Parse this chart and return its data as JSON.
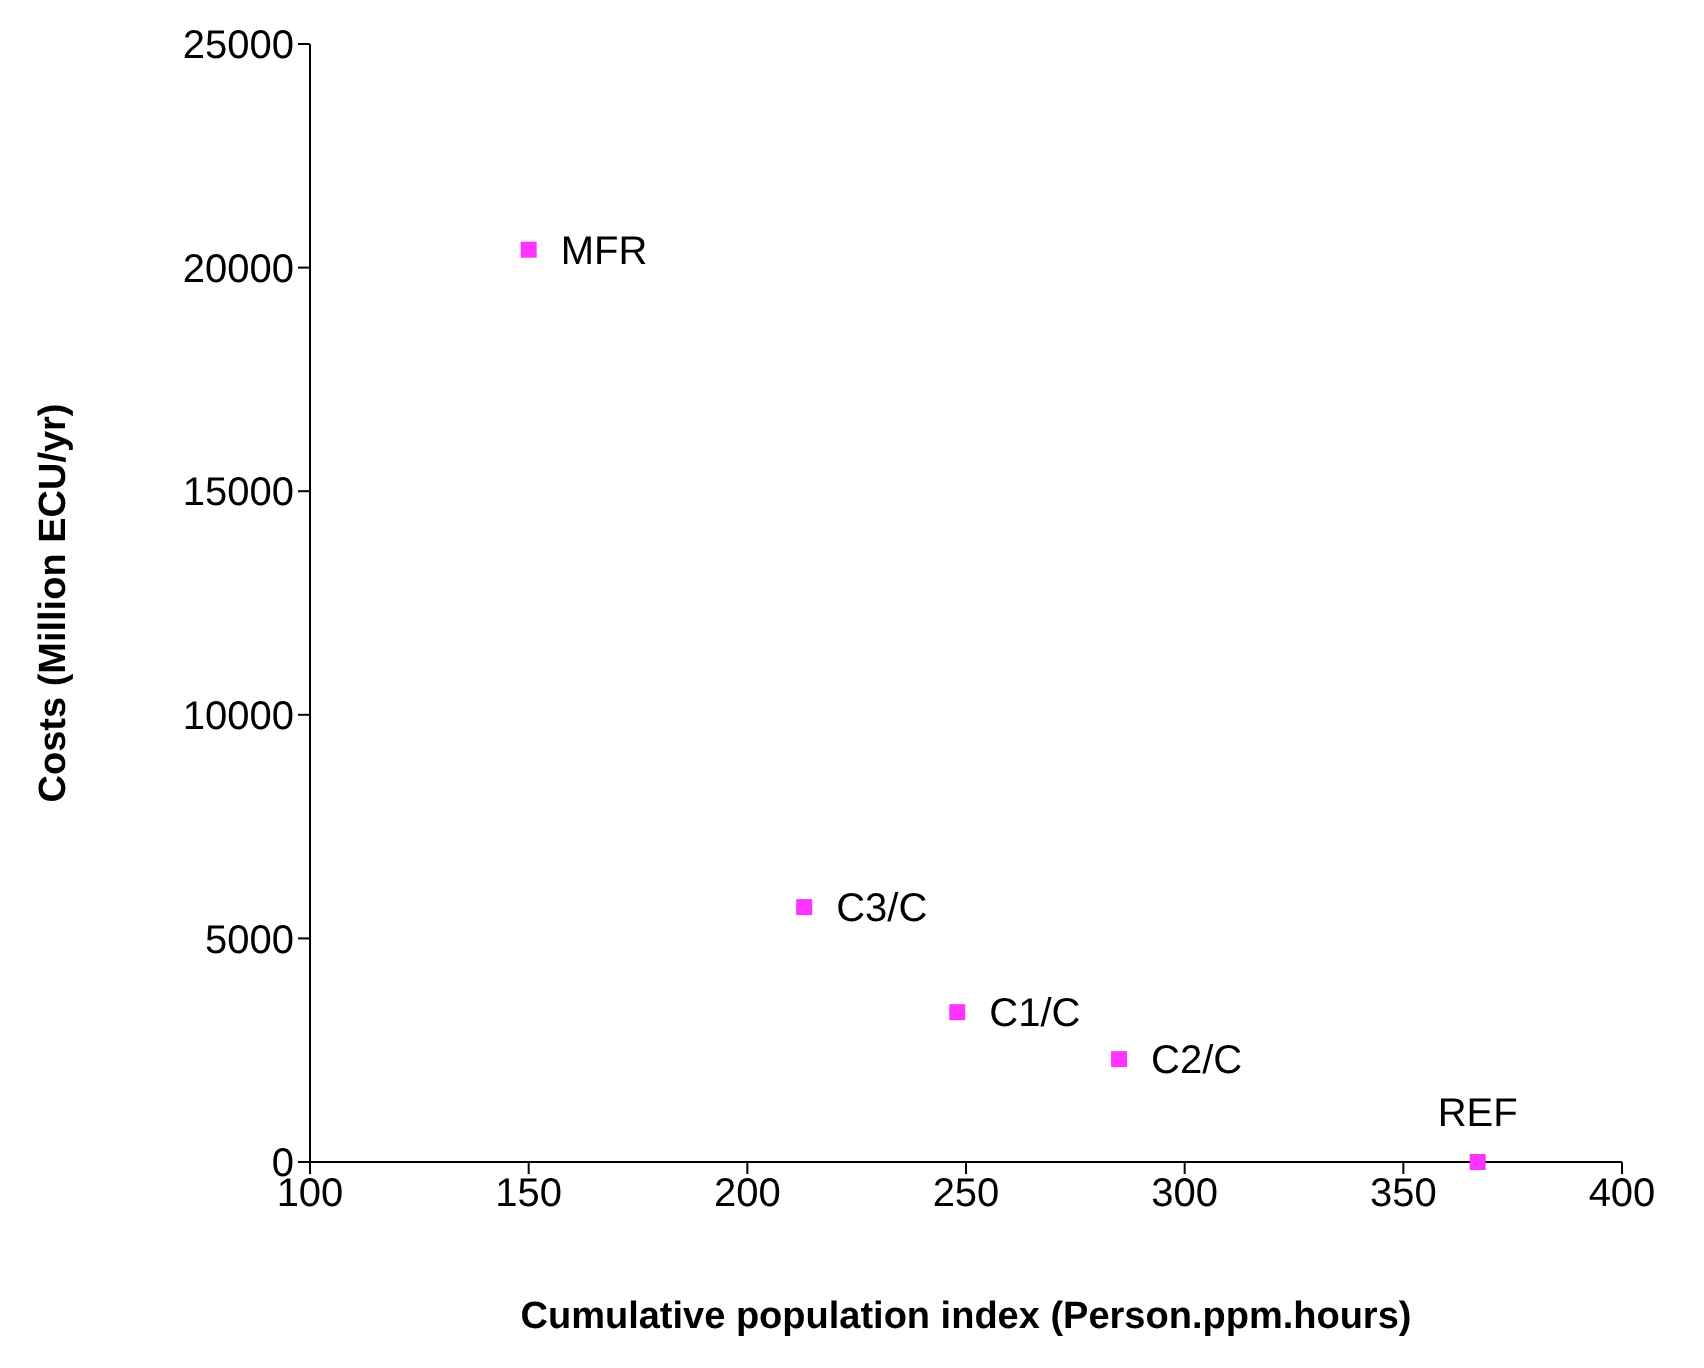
{
  "chart_data": {
    "type": "scatter",
    "xlabel": "Cumulative population index (Person.ppm.hours)",
    "ylabel": "Costs (Million ECU/yr)",
    "x": [
      150,
      213,
      248,
      285,
      367
    ],
    "values": [
      20400,
      5700,
      3350,
      2300,
      0
    ],
    "color": "#ff33ff",
    "marker": "square",
    "xlim": [
      100,
      400
    ],
    "xticks": [
      100,
      150,
      200,
      250,
      300,
      350,
      400
    ],
    "ylim": [
      0,
      25000
    ],
    "yticks": [
      0,
      5000,
      10000,
      15000,
      20000,
      25000
    ],
    "grid": false,
    "legend": false,
    "annotations": [
      {
        "text": "MFR",
        "x": 150,
        "y": 20400
      },
      {
        "text": "C3/C",
        "x": 213,
        "y": 5700
      },
      {
        "text": "C1/C",
        "x": 248,
        "y": 3350
      },
      {
        "text": "C2/C",
        "x": 285,
        "y": 2300
      },
      {
        "text": "REF",
        "x": 367,
        "y": 0
      }
    ]
  }
}
